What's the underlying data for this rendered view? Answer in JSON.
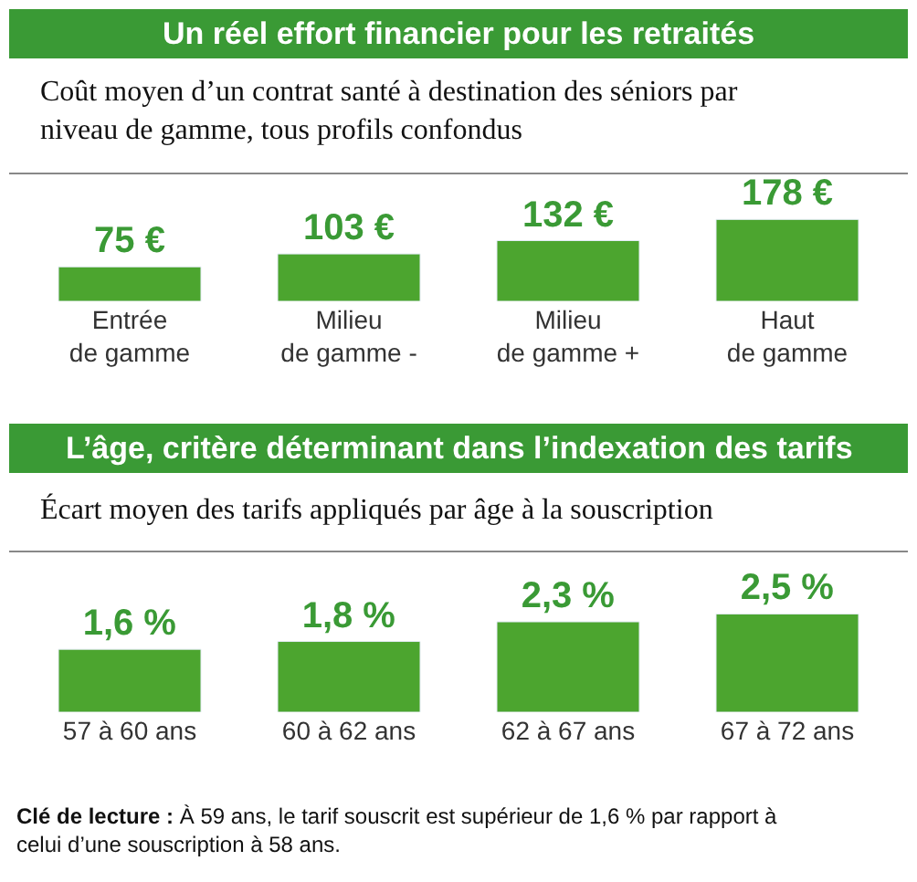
{
  "chart_data": [
    {
      "type": "bar",
      "title": "Un réel effort financier pour les retraités",
      "subtitle": "Coût moyen d’un contrat santé à destination des séniors par niveau de gamme, tous profils confondus",
      "categories": [
        "Entrée de gamme",
        "Milieu de gamme -",
        "Milieu de gamme +",
        "Haut de gamme"
      ],
      "values": [
        75,
        103,
        132,
        178
      ],
      "value_labels": [
        "75 €",
        "103 €",
        "132 €",
        "178 €"
      ],
      "color": "#4ca52f"
    },
    {
      "type": "bar",
      "title": "L’âge, critère déterminant dans l’indexation des tarifs",
      "subtitle": "Écart moyen des tarifs appliqués par âge à la souscription",
      "categories": [
        "57 à 60 ans",
        "60 à 62 ans",
        "62 à 67 ans",
        "67 à 72 ans"
      ],
      "values": [
        1.6,
        1.8,
        2.3,
        2.5
      ],
      "value_labels": [
        "1,6 %",
        "1,8 %",
        "2,3 %",
        "2,5 %"
      ],
      "color": "#4ca52f",
      "annotations": [
        "Clé de lecture : À 59 ans, le tarif souscrit est supérieur de 1,6 % par rapport à celui d’une souscription à 58 ans."
      ]
    }
  ]
}
